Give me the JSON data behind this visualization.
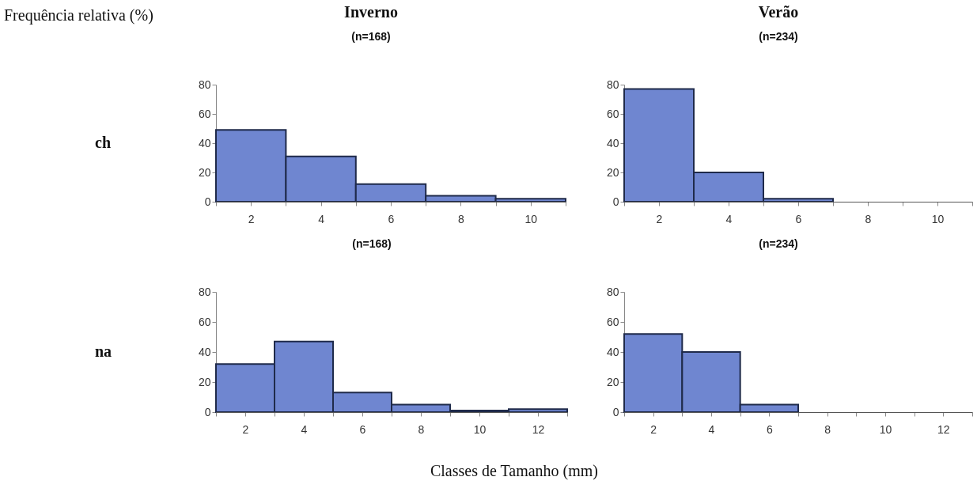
{
  "chart_data": [
    {
      "type": "histogram",
      "title": "Inverno",
      "subtitle": "(n=168)",
      "ylabel": "ch",
      "annotations": [
        "Frequência relativa (%)"
      ],
      "bins": [
        1,
        3,
        5,
        7,
        9,
        11
      ],
      "values": [
        49,
        31,
        12,
        4,
        2
      ],
      "color": "#6f86d0",
      "xlim": [
        1,
        11
      ],
      "ylim": [
        0,
        80
      ],
      "xticks": [
        {
          "value": 1,
          "label": null
        },
        2,
        {
          "value": 3,
          "label": null
        },
        4,
        {
          "value": 5,
          "label": null
        },
        6,
        {
          "value": 7,
          "label": null
        },
        8,
        {
          "value": 9,
          "label": null
        },
        10,
        {
          "value": 11,
          "label": null
        }
      ],
      "yticks": [
        0,
        20,
        40,
        60,
        80
      ]
    },
    {
      "type": "histogram",
      "title": "Verão",
      "subtitle": "(n=234)",
      "bins": [
        1,
        3,
        5,
        7,
        9,
        11
      ],
      "values": [
        77,
        20,
        2,
        0,
        0
      ],
      "color": "#6f86d0",
      "xlim": [
        1,
        11
      ],
      "ylim": [
        0,
        80
      ],
      "xticks": [
        {
          "value": 1,
          "label": null
        },
        2,
        {
          "value": 3,
          "label": null
        },
        4,
        {
          "value": 5,
          "label": null
        },
        6,
        {
          "value": 7,
          "label": null
        },
        8,
        {
          "value": 9,
          "label": null
        },
        10,
        {
          "value": 11,
          "label": null
        }
      ],
      "yticks": [
        0,
        20,
        40,
        60,
        80
      ]
    },
    {
      "type": "histogram",
      "subtitle": "(n=168)",
      "ylabel": "na",
      "xlabel": "Classes de Tamanho (mm)",
      "bins": [
        1,
        3,
        5,
        7,
        9,
        11,
        13
      ],
      "values": [
        32,
        47,
        13,
        5,
        1,
        2
      ],
      "color": "#6f86d0",
      "xlim": [
        1,
        13
      ],
      "ylim": [
        0,
        80
      ],
      "xticks": [
        {
          "value": 1,
          "label": null
        },
        2,
        {
          "value": 3,
          "label": null
        },
        4,
        {
          "value": 5,
          "label": null
        },
        6,
        {
          "value": 7,
          "label": null
        },
        8,
        {
          "value": 9,
          "label": null
        },
        10,
        {
          "value": 11,
          "label": null
        },
        12,
        {
          "value": 13,
          "label": null
        }
      ],
      "yticks": [
        0,
        20,
        40,
        60,
        80
      ]
    },
    {
      "type": "histogram",
      "subtitle": "(n=234)",
      "bins": [
        1,
        3,
        5,
        7,
        9,
        11,
        13
      ],
      "values": [
        52,
        40,
        5,
        0,
        0,
        0
      ],
      "color": "#6f86d0",
      "xlim": [
        1,
        13
      ],
      "ylim": [
        0,
        80
      ],
      "xticks": [
        {
          "value": 1,
          "label": null
        },
        2,
        {
          "value": 3,
          "label": null
        },
        4,
        {
          "value": 5,
          "label": null
        },
        6,
        {
          "value": 7,
          "label": null
        },
        8,
        {
          "value": 9,
          "label": null
        },
        10,
        {
          "value": 11,
          "label": null
        },
        12,
        {
          "value": 13,
          "label": null
        }
      ],
      "yticks": [
        0,
        20,
        40,
        60,
        80
      ]
    }
  ]
}
